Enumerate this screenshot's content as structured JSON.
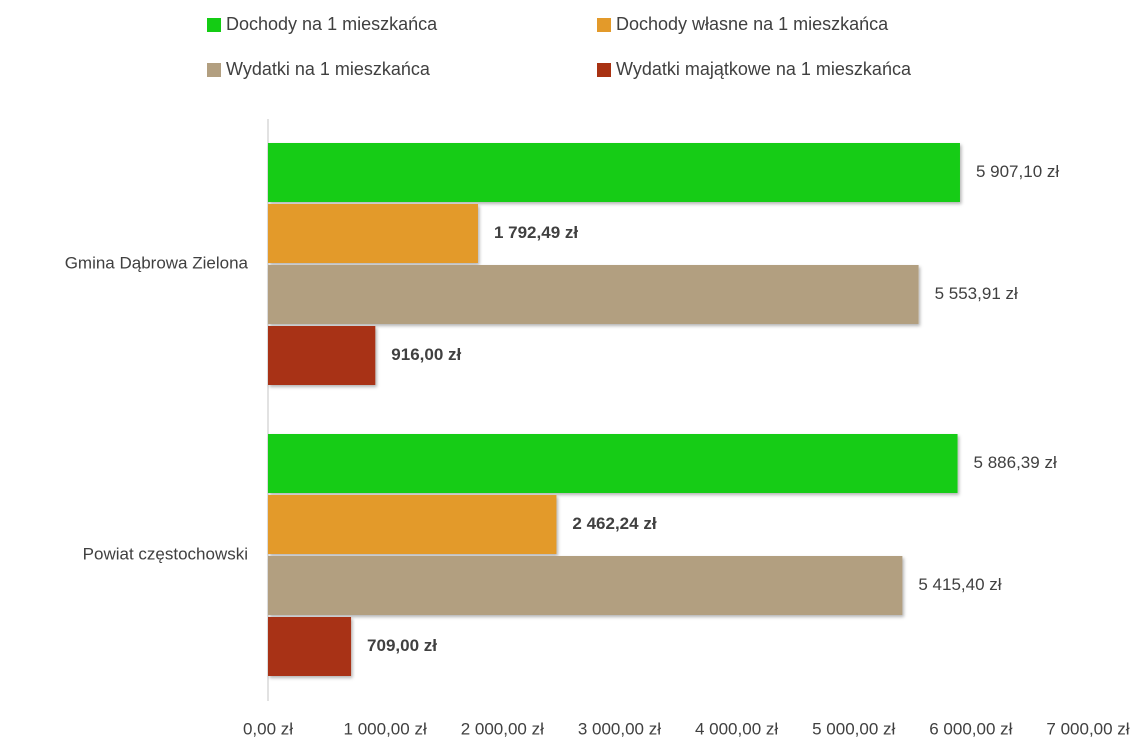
{
  "chart_data": {
    "type": "bar",
    "orientation": "horizontal",
    "categories": [
      "Gmina Dąbrowa Zielona",
      "Powiat częstochowski"
    ],
    "series": [
      {
        "name": "Dochody na 1 mieszkańca",
        "color": "#14cc14",
        "bold_labels": false,
        "values": [
          5907.1,
          5886.39
        ],
        "value_labels": [
          "5 907,10 zł",
          "5 886,39 zł"
        ]
      },
      {
        "name": "Dochody własne na 1 mieszkańca",
        "color": "#e39a2a",
        "bold_labels": true,
        "values": [
          1792.49,
          2462.24
        ],
        "value_labels": [
          "1 792,49 zł",
          "2 462,24 zł"
        ]
      },
      {
        "name": "Wydatki na 1 mieszkańca",
        "color": "#b29f80",
        "bold_labels": false,
        "values": [
          5553.91,
          5415.4
        ],
        "value_labels": [
          "5 553,91 zł",
          "5 415,40 zł"
        ]
      },
      {
        "name": "Wydatki majątkowe na 1 mieszkańca",
        "color": "#a83212",
        "bold_labels": true,
        "values": [
          916.0,
          709.0
        ],
        "value_labels": [
          "916,00 zł",
          "709,00 zł"
        ]
      }
    ],
    "xlim": [
      0,
      7000
    ],
    "xticks": [
      {
        "value": 0,
        "label": "0,00 zł"
      },
      {
        "value": 1000,
        "label": "1 000,00 zł"
      },
      {
        "value": 2000,
        "label": "2 000,00 zł"
      },
      {
        "value": 3000,
        "label": "3 000,00 zł"
      },
      {
        "value": 4000,
        "label": "4 000,00 zł"
      },
      {
        "value": 5000,
        "label": "5 000,00 zł"
      },
      {
        "value": 6000,
        "label": "6 000,00 zł"
      },
      {
        "value": 7000,
        "label": "7 000,00 zł"
      }
    ],
    "legend": "top"
  }
}
